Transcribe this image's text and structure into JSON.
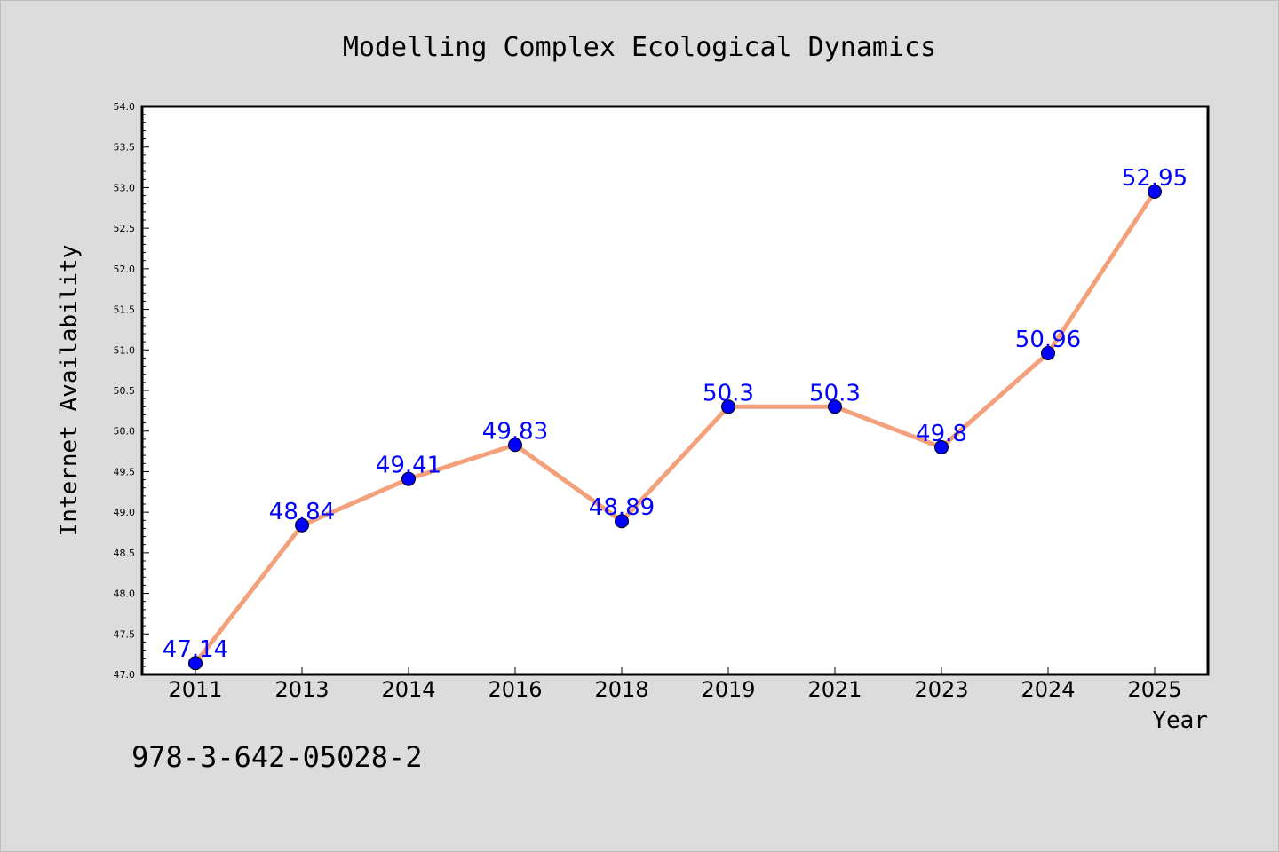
{
  "chart_data": {
    "type": "line",
    "title": "Modelling Complex Ecological Dynamics",
    "xlabel": "Year",
    "ylabel": "Internet Availability",
    "categories": [
      "2011",
      "2013",
      "2014",
      "2016",
      "2018",
      "2019",
      "2021",
      "2023",
      "2024",
      "2025"
    ],
    "series": [
      {
        "values": [
          47.14,
          48.84,
          49.41,
          49.83,
          48.89,
          50.3,
          50.3,
          49.8,
          50.96,
          52.95
        ],
        "data_labels": [
          "47.14",
          "48.84",
          "49.41",
          "49.83",
          "48.89",
          "50.3",
          "50.3",
          "49.8",
          "50.96",
          "52.95"
        ]
      }
    ],
    "ylim": [
      47.0,
      54.0
    ],
    "yticks": [
      "47.0",
      "47.5",
      "48.0",
      "48.5",
      "49.0",
      "49.5",
      "50.0",
      "50.5",
      "51.0",
      "51.5",
      "52.0",
      "52.5",
      "53.0",
      "53.5",
      "54.0"
    ],
    "grid": false,
    "colors": {
      "line": "#f4a07a",
      "marker": "#0000ff",
      "data_label": "#0000ff",
      "plot_background": "#ffffff",
      "figure_background": "#dcdcdc"
    }
  },
  "annotation": "978-3-642-05028-2"
}
